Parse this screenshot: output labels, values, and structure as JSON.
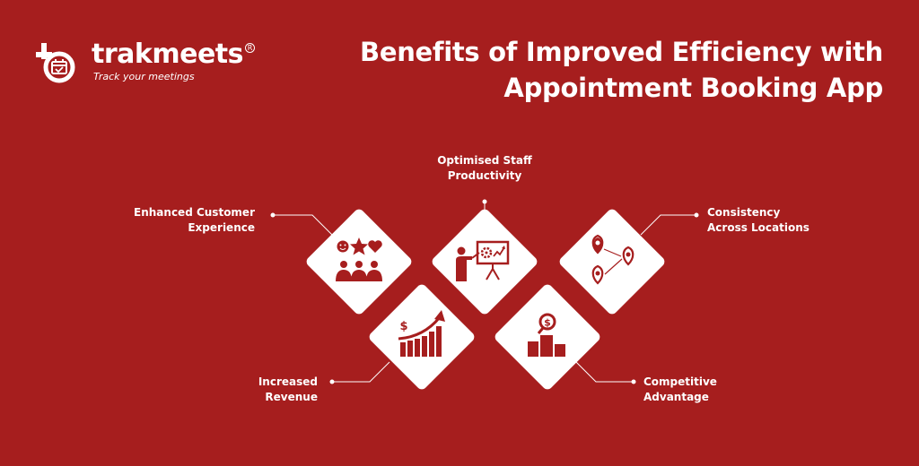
{
  "brand": {
    "name": "trakmeets",
    "registered": "R",
    "tagline": "Track your meetings"
  },
  "title": {
    "line1": "Benefits of Improved Efficiency with",
    "line2": "Appointment Booking App"
  },
  "benefits": {
    "customer": {
      "line1": "Enhanced Customer",
      "line2": "Experience",
      "icon": "customer-satisfaction-icon"
    },
    "staff": {
      "line1": "Optimised Staff",
      "line2": "Productivity",
      "icon": "presentation-icon"
    },
    "consistency": {
      "line1": "Consistency",
      "line2": "Across Locations",
      "icon": "map-locations-icon"
    },
    "revenue": {
      "line1": "Increased",
      "line2": "Revenue",
      "icon": "revenue-growth-icon"
    },
    "competitive": {
      "line1": "Competitive",
      "line2": "Advantage",
      "icon": "podium-icon"
    }
  },
  "colors": {
    "background": "#A61E1E",
    "card": "#FFFFFF",
    "icon": "#A61E1E",
    "text": "#FFFFFF"
  }
}
